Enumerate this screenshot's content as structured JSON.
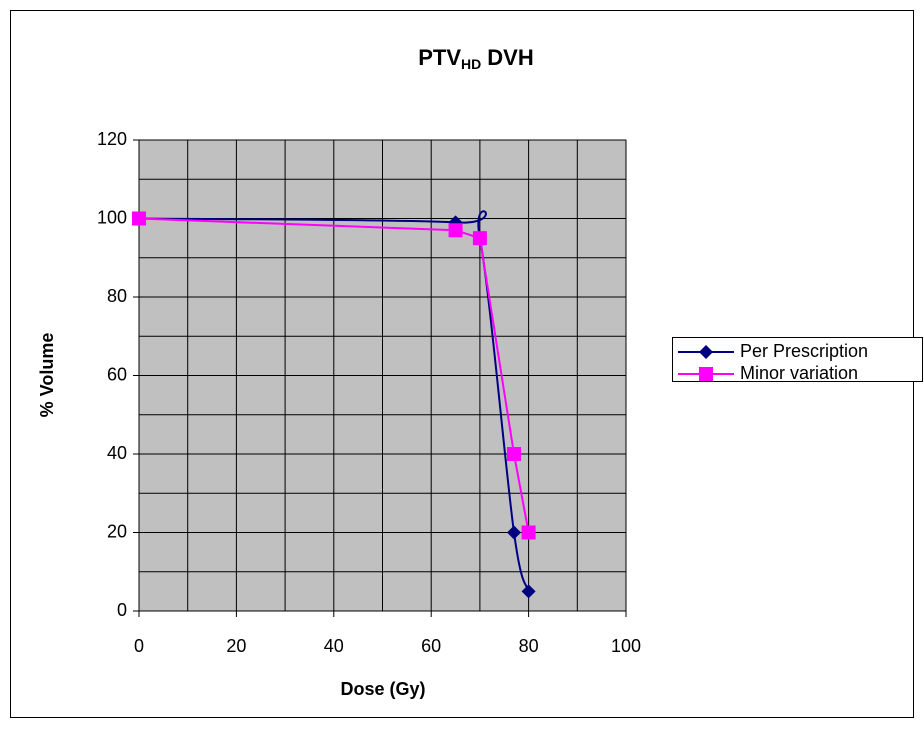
{
  "chart_data": {
    "type": "line",
    "title": "PTV",
    "title_subscript": "HD",
    "title_suffix": "DVH",
    "xlabel": "Dose (Gy)",
    "ylabel": "% Volume",
    "series": [
      {
        "name": "Per Prescription",
        "color": "#000080",
        "marker": "diamond",
        "smooth": true,
        "x": [
          0,
          65,
          70,
          77,
          80
        ],
        "values": [
          100,
          99,
          95,
          20,
          5
        ]
      },
      {
        "name": "Minor variation",
        "color": "#ff00ff",
        "marker": "square",
        "smooth": false,
        "x": [
          0,
          65,
          70,
          77,
          80
        ],
        "values": [
          100,
          97,
          95,
          40,
          20
        ]
      }
    ],
    "xlim": [
      0,
      100
    ],
    "xticks": [
      0,
      20,
      40,
      60,
      80,
      100
    ],
    "xgrid": [
      0,
      10,
      20,
      30,
      40,
      50,
      60,
      70,
      80,
      90,
      100
    ],
    "ylim": [
      0,
      120
    ],
    "yticks": [
      0,
      20,
      40,
      60,
      80,
      100,
      120
    ],
    "ygrid": [
      0,
      10,
      20,
      30,
      40,
      50,
      60,
      70,
      80,
      90,
      100,
      110,
      120
    ],
    "grid": true,
    "legend": "right"
  }
}
